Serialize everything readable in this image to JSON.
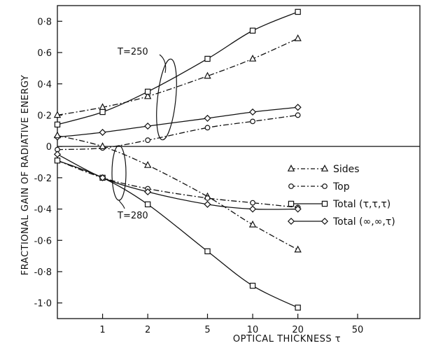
{
  "chart_data": {
    "type": "line",
    "xlabel": "OPTICAL THICKNESS τ",
    "ylabel": "FRACTIONAL GAIN OF RADIATIVE ENERGY",
    "xscale": "log",
    "xlim": [
      0.5,
      130
    ],
    "ylim": [
      -1.1,
      0.9
    ],
    "grid": false,
    "legend_position": "right",
    "x_ticks": [
      {
        "value": 1,
        "label": "1"
      },
      {
        "value": 2,
        "label": "2"
      },
      {
        "value": 5,
        "label": "5"
      },
      {
        "value": 10,
        "label": "10"
      },
      {
        "value": 20,
        "label": "20"
      },
      {
        "value": 50,
        "label": "50"
      }
    ],
    "y_ticks": [
      {
        "value": 0.8,
        "label": "0·8"
      },
      {
        "value": 0.6,
        "label": "0·6"
      },
      {
        "value": 0.4,
        "label": "0·4"
      },
      {
        "value": 0.2,
        "label": "0·2"
      },
      {
        "value": 0,
        "label": "0"
      },
      {
        "value": -0.2,
        "label": "-0·2"
      },
      {
        "value": -0.4,
        "label": "-0·4"
      },
      {
        "value": -0.6,
        "label": "-0·6"
      },
      {
        "value": -0.8,
        "label": "-0·8"
      },
      {
        "value": -1.0,
        "label": "-1·0"
      }
    ],
    "legend": [
      {
        "key": "sides",
        "label": "Sides",
        "marker": "triangle",
        "dash": "dashdot"
      },
      {
        "key": "top",
        "label": "Top",
        "marker": "circle",
        "dash": "dashdot"
      },
      {
        "key": "total_ttt",
        "label": "Total (τ,τ,τ)",
        "marker": "square",
        "dash": "solid"
      },
      {
        "key": "total_inf",
        "label": "Total (∞,∞,τ)",
        "marker": "diamond",
        "dash": "solid"
      }
    ],
    "annotations": [
      {
        "text": "T=250"
      },
      {
        "text": "T=280"
      }
    ],
    "series": [
      {
        "key": "sides",
        "group": "T=250",
        "marker": "triangle",
        "dash": "dashdot",
        "x": [
          0.5,
          1,
          2,
          5,
          10,
          20
        ],
        "y": [
          0.2,
          0.25,
          0.32,
          0.45,
          0.56,
          0.69
        ]
      },
      {
        "key": "top",
        "group": "T=250",
        "marker": "circle",
        "dash": "dashdot",
        "x": [
          0.5,
          1,
          2,
          5,
          10,
          20
        ],
        "y": [
          -0.02,
          -0.01,
          0.04,
          0.12,
          0.16,
          0.2
        ]
      },
      {
        "key": "total_ttt",
        "group": "T=250",
        "marker": "square",
        "dash": "solid",
        "x": [
          0.5,
          1,
          2,
          5,
          10,
          20
        ],
        "y": [
          0.14,
          0.22,
          0.35,
          0.56,
          0.74,
          0.86
        ]
      },
      {
        "key": "total_inf",
        "group": "T=250",
        "marker": "diamond",
        "dash": "solid",
        "x": [
          0.5,
          1,
          2,
          5,
          10,
          20
        ],
        "y": [
          0.06,
          0.09,
          0.13,
          0.18,
          0.22,
          0.25
        ]
      },
      {
        "key": "sides",
        "group": "T=280",
        "marker": "triangle",
        "dash": "dashdot",
        "x": [
          0.5,
          1,
          2,
          5,
          10,
          20
        ],
        "y": [
          0.07,
          0.0,
          -0.12,
          -0.32,
          -0.5,
          -0.66
        ]
      },
      {
        "key": "top",
        "group": "T=280",
        "marker": "circle",
        "dash": "dashdot",
        "x": [
          0.5,
          1,
          2,
          5,
          10,
          20
        ],
        "y": [
          -0.09,
          -0.2,
          -0.27,
          -0.33,
          -0.36,
          -0.39
        ]
      },
      {
        "key": "total_ttt",
        "group": "T=280",
        "marker": "square",
        "dash": "solid",
        "x": [
          0.5,
          1,
          2,
          5,
          10,
          20
        ],
        "y": [
          -0.09,
          -0.2,
          -0.37,
          -0.67,
          -0.89,
          -1.03
        ]
      },
      {
        "key": "total_inf",
        "group": "T=280",
        "marker": "diamond",
        "dash": "solid",
        "x": [
          0.5,
          1,
          2,
          5,
          10,
          20
        ],
        "y": [
          -0.05,
          -0.2,
          -0.29,
          -0.37,
          -0.4,
          -0.4
        ]
      }
    ]
  }
}
